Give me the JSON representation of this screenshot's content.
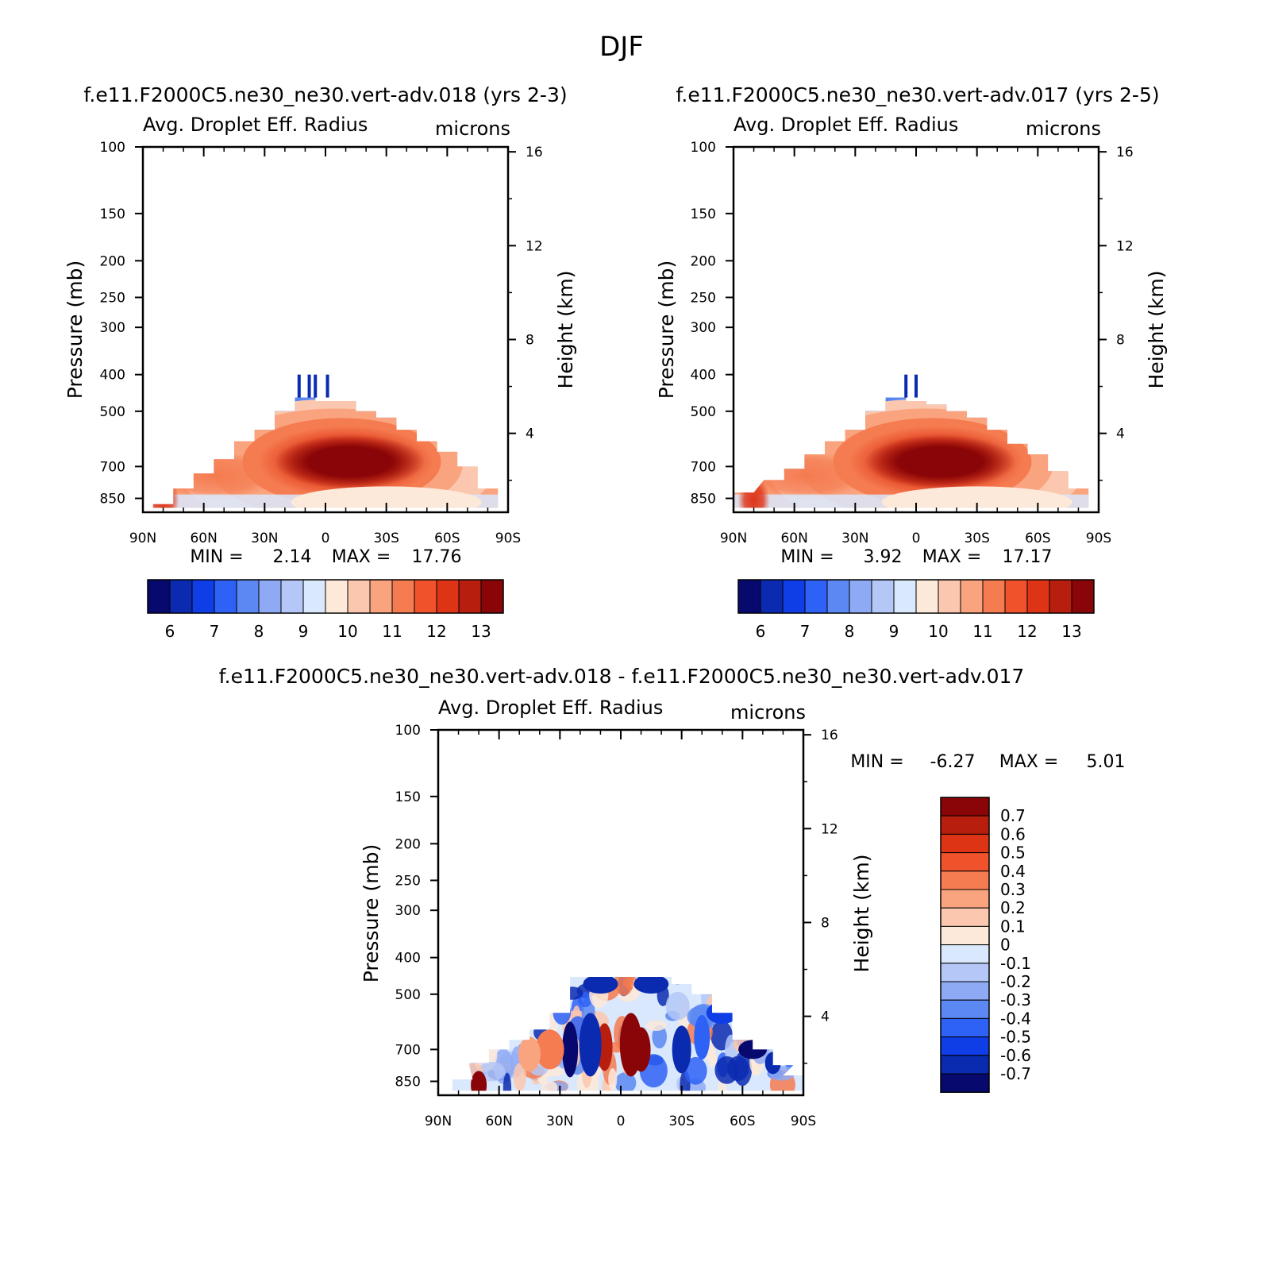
{
  "figure": {
    "title": "DJF"
  },
  "colors": {
    "abs_palette": [
      "#08096e",
      "#0a2ab0",
      "#0f3de6",
      "#2e62f6",
      "#5b88f2",
      "#8eaaf4",
      "#b4c7f7",
      "#d9e8fc",
      "#fde9d9",
      "#fbc7ae",
      "#f9a47e",
      "#f57b50",
      "#f0522b",
      "#de3416",
      "#b81e0d",
      "#8a0507"
    ],
    "diff_palette": [
      "#08096e",
      "#0a2ab0",
      "#0f3de6",
      "#2e62f6",
      "#5b88f2",
      "#8eaaf4",
      "#b4c7f7",
      "#d9e8fc",
      "#fde9d9",
      "#fbc7ae",
      "#f9a47e",
      "#f57b50",
      "#f0522b",
      "#de3416",
      "#b81e0d",
      "#8a0507"
    ]
  },
  "panels": [
    {
      "case_title": "f.e11.F2000C5.ne30_ne30.vert-adv.018 (yrs 2-3)",
      "variable": "Avg. Droplet Eff. Radius",
      "units": "microns",
      "ylabel": "Pressure (mb)",
      "ylabel_right": "Height (km)",
      "stats": {
        "min_label": "MIN =",
        "min_value": "2.14",
        "max_label": "MAX =",
        "max_value": "17.76"
      },
      "colorbar_labels": [
        "6",
        "7",
        "8",
        "9",
        "10",
        "11",
        "12",
        "13"
      ]
    },
    {
      "case_title": "f.e11.F2000C5.ne30_ne30.vert-adv.017 (yrs 2-5)",
      "variable": "Avg. Droplet Eff. Radius",
      "units": "microns",
      "ylabel": "Pressure (mb)",
      "ylabel_right": "Height (km)",
      "stats": {
        "min_label": "MIN =",
        "min_value": "3.92",
        "max_label": "MAX =",
        "max_value": "17.17"
      },
      "colorbar_labels": [
        "6",
        "7",
        "8",
        "9",
        "10",
        "11",
        "12",
        "13"
      ]
    },
    {
      "case_title": "f.e11.F2000C5.ne30_ne30.vert-adv.018 - f.e11.F2000C5.ne30_ne30.vert-adv.017",
      "variable": "Avg. Droplet Eff. Radius",
      "units": "microns",
      "ylabel": "Pressure (mb)",
      "ylabel_right": "Height (km)",
      "stats": {
        "min_label": "MIN =",
        "min_value": "-6.27",
        "max_label": "MAX =",
        "max_value": "5.01"
      },
      "colorbar_labels": [
        "0.7",
        "0.6",
        "0.5",
        "0.4",
        "0.3",
        "0.2",
        "0.1",
        "0",
        "-0.1",
        "-0.2",
        "-0.3",
        "-0.4",
        "-0.5",
        "-0.6",
        "-0.7"
      ]
    }
  ],
  "chart_data": [
    {
      "type": "heatmap",
      "title": "f.e11.F2000C5.ne30_ne30.vert-adv.018 (yrs 2-3)",
      "subtitle": "Avg. Droplet Eff. Radius",
      "units": "microns",
      "x_ticks": [
        "90N",
        "60N",
        "30N",
        "0",
        "30S",
        "60S",
        "90S"
      ],
      "xlim": [
        90,
        -90
      ],
      "y_ticks": [
        100,
        150,
        200,
        250,
        300,
        400,
        500,
        700,
        850
      ],
      "ylim": [
        100,
        925
      ],
      "ylabel": "Pressure (mb)",
      "y2_ticks": [
        16,
        12,
        8,
        4
      ],
      "y2label": "Height (km)",
      "levels": [
        6,
        6.5,
        7,
        7.5,
        8,
        8.5,
        9,
        9.5,
        10,
        10.5,
        11,
        11.5,
        12,
        12.5,
        13
      ],
      "min": 2.14,
      "max": 17.76,
      "cloud_top_mb": [
        [
          80,
          880
        ],
        [
          70,
          800
        ],
        [
          60,
          730
        ],
        [
          50,
          670
        ],
        [
          40,
          600
        ],
        [
          30,
          560
        ],
        [
          20,
          500
        ],
        [
          10,
          460
        ],
        [
          0,
          470
        ],
        [
          -10,
          470
        ],
        [
          -20,
          500
        ],
        [
          -30,
          520
        ],
        [
          -40,
          560
        ],
        [
          -50,
          600
        ],
        [
          -60,
          640
        ],
        [
          -70,
          700
        ],
        [
          -80,
          800
        ]
      ],
      "maximum": {
        "lat": -10,
        "pressure": 700,
        "value": 17.76
      }
    },
    {
      "type": "heatmap",
      "title": "f.e11.F2000C5.ne30_ne30.vert-adv.017 (yrs 2-5)",
      "subtitle": "Avg. Droplet Eff. Radius",
      "units": "microns",
      "x_ticks": [
        "90N",
        "60N",
        "30N",
        "0",
        "30S",
        "60S",
        "90S"
      ],
      "xlim": [
        90,
        -90
      ],
      "y_ticks": [
        100,
        150,
        200,
        250,
        300,
        400,
        500,
        700,
        850
      ],
      "ylim": [
        100,
        925
      ],
      "ylabel": "Pressure (mb)",
      "y2_ticks": [
        16,
        12,
        8,
        4
      ],
      "y2label": "Height (km)",
      "levels": [
        6,
        6.5,
        7,
        7.5,
        8,
        8.5,
        9,
        9.5,
        10,
        10.5,
        11,
        11.5,
        12,
        12.5,
        13
      ],
      "min": 3.92,
      "max": 17.17,
      "cloud_top_mb": [
        [
          85,
          820
        ],
        [
          70,
          760
        ],
        [
          60,
          710
        ],
        [
          50,
          650
        ],
        [
          40,
          600
        ],
        [
          30,
          560
        ],
        [
          20,
          500
        ],
        [
          10,
          460
        ],
        [
          0,
          470
        ],
        [
          -10,
          480
        ],
        [
          -20,
          500
        ],
        [
          -30,
          520
        ],
        [
          -40,
          560
        ],
        [
          -50,
          610
        ],
        [
          -60,
          650
        ],
        [
          -70,
          720
        ],
        [
          -80,
          800
        ]
      ],
      "maximum": {
        "lat": -10,
        "pressure": 680,
        "value": 17.17
      }
    },
    {
      "type": "heatmap",
      "title": "f.e11.F2000C5.ne30_ne30.vert-adv.018 - f.e11.F2000C5.ne30_ne30.vert-adv.017",
      "subtitle": "Avg. Droplet Eff. Radius",
      "units": "microns",
      "x_ticks": [
        "90N",
        "60N",
        "30N",
        "0",
        "30S",
        "60S",
        "90S"
      ],
      "xlim": [
        90,
        -90
      ],
      "y_ticks": [
        100,
        150,
        200,
        250,
        300,
        400,
        500,
        700,
        850
      ],
      "ylim": [
        100,
        925
      ],
      "ylabel": "Pressure (mb)",
      "y2_ticks": [
        16,
        12,
        8,
        4
      ],
      "y2label": "Height (km)",
      "levels": [
        -0.7,
        -0.6,
        -0.5,
        -0.4,
        -0.3,
        -0.2,
        -0.1,
        0,
        0.1,
        0.2,
        0.3,
        0.4,
        0.5,
        0.6,
        0.7
      ],
      "min": -6.27,
      "max": 5.01,
      "note": "alternating positive and negative differences concentrated between 30N and 30S, 450-850 mb"
    }
  ]
}
